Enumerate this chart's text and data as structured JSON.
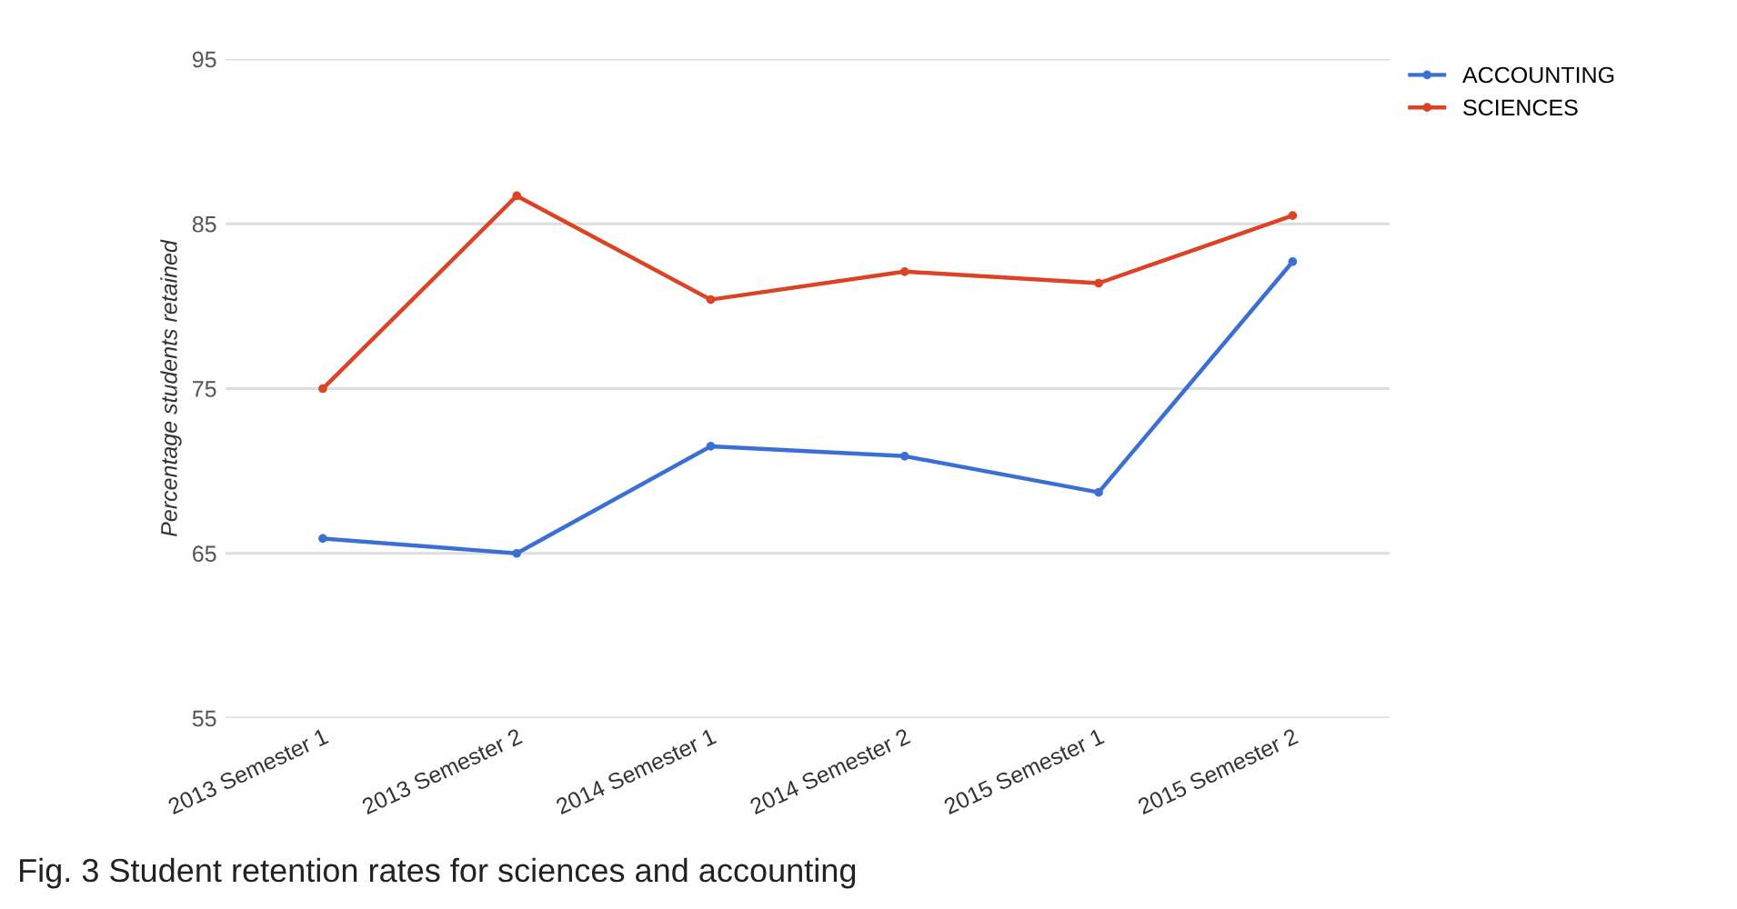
{
  "chart_data": {
    "type": "line",
    "ylabel": "Percentage students retained",
    "categories": [
      "2013 Semester 1",
      "2013 Semester 2",
      "2014 Semester 1",
      "2014 Semester 2",
      "2015 Semester 1",
      "2015 Semester 2"
    ],
    "series": [
      {
        "name": "ACCOUNTING",
        "color": "#3c6fd4",
        "values": [
          65.9,
          65.0,
          71.5,
          70.9,
          68.7,
          82.7
        ]
      },
      {
        "name": "SCIENCES",
        "color": "#dc4324",
        "values": [
          75.0,
          86.7,
          80.4,
          82.1,
          81.4,
          85.5
        ]
      }
    ],
    "ylim": [
      55,
      95
    ],
    "yticks": [
      55,
      65,
      75,
      85,
      95
    ],
    "grid": "y",
    "legend": "top right",
    "marker": "circle",
    "line_style": "solid",
    "annotations": [
      "Fig. 3 Student retention rates for sciences and accounting"
    ]
  }
}
